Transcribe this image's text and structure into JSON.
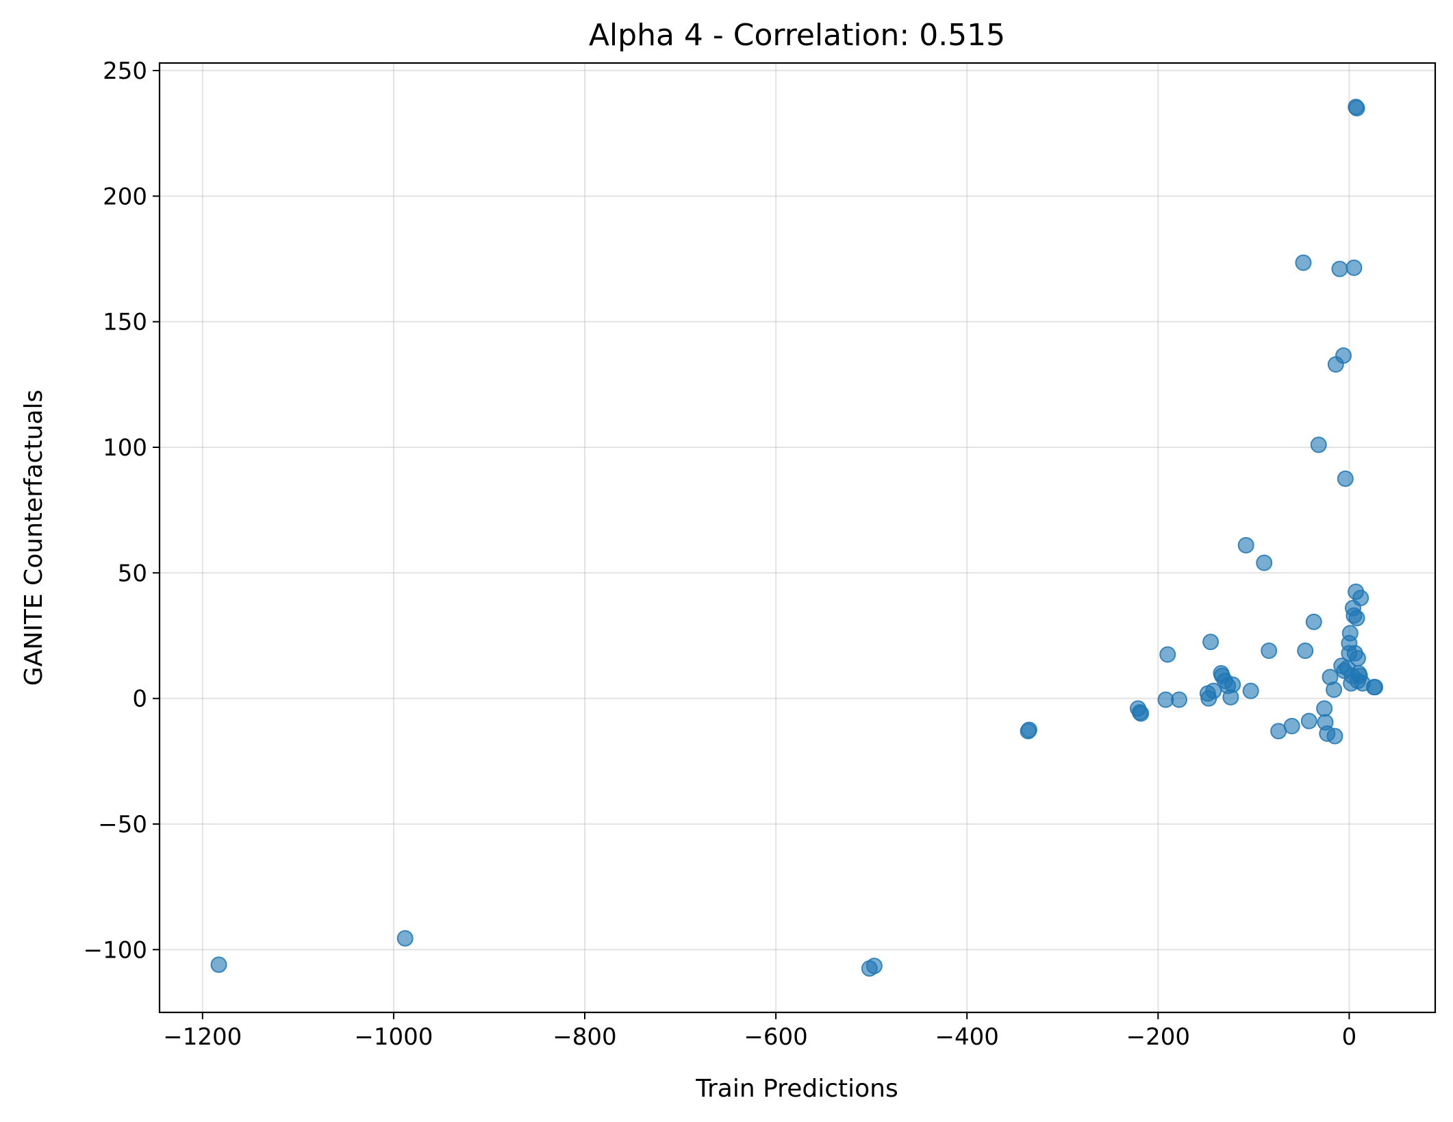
{
  "chart_data": {
    "type": "scatter",
    "title": "Alpha 4 - Correlation: 0.515",
    "xlabel": "Train Predictions",
    "ylabel": "GANITE Counterfactuals",
    "xlim": [
      -1245,
      90
    ],
    "ylim": [
      -125,
      253
    ],
    "xticks": [
      -1200,
      -1000,
      -800,
      -600,
      -400,
      -200,
      0
    ],
    "xtick_labels": [
      "−1200",
      "−1000",
      "−800",
      "−600",
      "−400",
      "−200",
      "0"
    ],
    "yticks": [
      -100,
      -50,
      0,
      50,
      100,
      150,
      200,
      250
    ],
    "ytick_labels": [
      "−100",
      "−50",
      "0",
      "50",
      "100",
      "150",
      "200",
      "250"
    ],
    "grid": true,
    "marker_color": "#1f77b4",
    "marker_alpha": 0.6,
    "points": [
      {
        "x": -1183,
        "y": -106
      },
      {
        "x": -988,
        "y": -95.5
      },
      {
        "x": -502,
        "y": -107.5
      },
      {
        "x": -497,
        "y": -106.5
      },
      {
        "x": -336,
        "y": -13
      },
      {
        "x": -335,
        "y": -12.5
      },
      {
        "x": -221,
        "y": -4
      },
      {
        "x": -219,
        "y": -5.5
      },
      {
        "x": -218,
        "y": -6
      },
      {
        "x": -192,
        "y": -0.5
      },
      {
        "x": -190,
        "y": 17.5
      },
      {
        "x": -178,
        "y": -0.5
      },
      {
        "x": -148,
        "y": 2
      },
      {
        "x": -147,
        "y": 0
      },
      {
        "x": -145,
        "y": 22.5
      },
      {
        "x": -142,
        "y": 3
      },
      {
        "x": -134,
        "y": 10
      },
      {
        "x": -133,
        "y": 9
      },
      {
        "x": -130,
        "y": 7
      },
      {
        "x": -127,
        "y": 5
      },
      {
        "x": -124,
        "y": 0.5
      },
      {
        "x": -122,
        "y": 5.5
      },
      {
        "x": -108,
        "y": 61
      },
      {
        "x": -103,
        "y": 3
      },
      {
        "x": -89,
        "y": 54
      },
      {
        "x": -84,
        "y": 19
      },
      {
        "x": -74,
        "y": -13
      },
      {
        "x": -60,
        "y": -11
      },
      {
        "x": -48,
        "y": 173.5
      },
      {
        "x": -46,
        "y": 19
      },
      {
        "x": -42,
        "y": -9
      },
      {
        "x": -37,
        "y": 30.5
      },
      {
        "x": -32,
        "y": 101
      },
      {
        "x": -26,
        "y": -4
      },
      {
        "x": -25,
        "y": -9.5
      },
      {
        "x": -23,
        "y": -14
      },
      {
        "x": -20,
        "y": 8.5
      },
      {
        "x": -16,
        "y": 3.5
      },
      {
        "x": -15,
        "y": -15
      },
      {
        "x": -14,
        "y": 133
      },
      {
        "x": -10,
        "y": 171
      },
      {
        "x": -8,
        "y": 13
      },
      {
        "x": -6,
        "y": 136.5
      },
      {
        "x": -5,
        "y": 11
      },
      {
        "x": -4,
        "y": 87.5
      },
      {
        "x": -2,
        "y": 12
      },
      {
        "x": 0,
        "y": 18
      },
      {
        "x": 0,
        "y": 22
      },
      {
        "x": 1,
        "y": 26
      },
      {
        "x": 2,
        "y": 6
      },
      {
        "x": 3,
        "y": 9
      },
      {
        "x": 4,
        "y": 36
      },
      {
        "x": 5,
        "y": 171.5
      },
      {
        "x": 5,
        "y": 33
      },
      {
        "x": 6,
        "y": 18
      },
      {
        "x": 7,
        "y": 235.5
      },
      {
        "x": 7,
        "y": 42.5
      },
      {
        "x": 8,
        "y": 32
      },
      {
        "x": 8,
        "y": 235
      },
      {
        "x": 9,
        "y": 16
      },
      {
        "x": 9,
        "y": 7
      },
      {
        "x": 10,
        "y": 10
      },
      {
        "x": 11,
        "y": 9
      },
      {
        "x": 12,
        "y": 40
      },
      {
        "x": 14,
        "y": 6
      },
      {
        "x": 26,
        "y": 4.5
      },
      {
        "x": 27,
        "y": 4.5
      }
    ]
  }
}
